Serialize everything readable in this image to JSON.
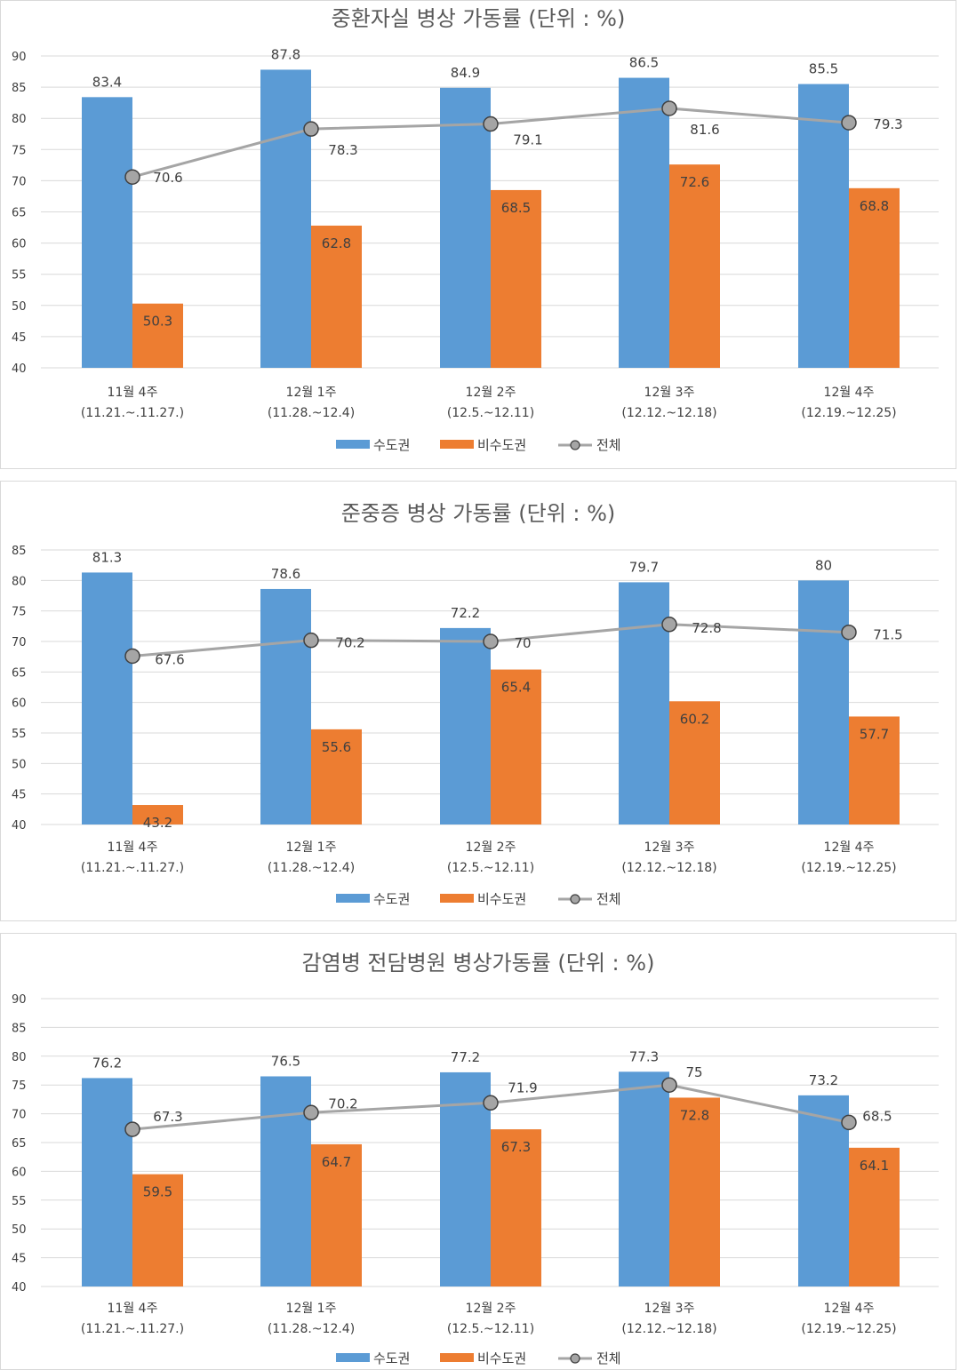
{
  "legend": {
    "series1": "수도권",
    "series2": "비수도권",
    "series3": "전체"
  },
  "colors": {
    "series1": "#5b9bd5",
    "series2": "#ed7d31",
    "series3": "#a5a5a5",
    "grid": "#d9d9d9"
  },
  "chart_data": [
    {
      "type": "bar",
      "title": "중환자실 병상 가동률 (단위 : %)",
      "categories": [
        {
          "line1": "11월 4주",
          "line2": "(11.21.~.11.27.)"
        },
        {
          "line1": "12월 1주",
          "line2": "(11.28.~12.4)"
        },
        {
          "line1": "12월 2주",
          "line2": "(12.5.~12.11)"
        },
        {
          "line1": "12월 3주",
          "line2": "(12.12.~12.18)"
        },
        {
          "line1": "12월 4주",
          "line2": "(12.19.~12.25)"
        }
      ],
      "ylim": [
        40,
        90
      ],
      "yticks": [
        40,
        45,
        50,
        55,
        60,
        65,
        70,
        75,
        80,
        85,
        90
      ],
      "series": [
        {
          "name": "수도권",
          "kind": "bar",
          "values": [
            83.4,
            87.8,
            84.9,
            86.5,
            85.5
          ]
        },
        {
          "name": "비수도권",
          "kind": "bar",
          "values": [
            50.3,
            62.8,
            68.5,
            72.6,
            68.8
          ]
        },
        {
          "name": "전체",
          "kind": "line",
          "values": [
            70.6,
            78.3,
            79.1,
            81.6,
            79.3
          ]
        }
      ],
      "legend_position": "bottom"
    },
    {
      "type": "bar",
      "title": "준중증 병상 가동률 (단위 : %)",
      "categories": [
        {
          "line1": "11월 4주",
          "line2": "(11.21.~.11.27.)"
        },
        {
          "line1": "12월 1주",
          "line2": "(11.28.~12.4)"
        },
        {
          "line1": "12월 2주",
          "line2": "(12.5.~12.11)"
        },
        {
          "line1": "12월 3주",
          "line2": "(12.12.~12.18)"
        },
        {
          "line1": "12월 4주",
          "line2": "(12.19.~12.25)"
        }
      ],
      "ylim": [
        40,
        85
      ],
      "yticks": [
        40,
        45,
        50,
        55,
        60,
        65,
        70,
        75,
        80,
        85
      ],
      "series": [
        {
          "name": "수도권",
          "kind": "bar",
          "values": [
            81.3,
            78.6,
            72.2,
            79.7,
            80
          ]
        },
        {
          "name": "비수도권",
          "kind": "bar",
          "values": [
            43.2,
            55.6,
            65.4,
            60.2,
            57.7
          ]
        },
        {
          "name": "전체",
          "kind": "line",
          "values": [
            67.6,
            70.2,
            70,
            72.8,
            71.5
          ]
        }
      ],
      "legend_position": "bottom"
    },
    {
      "type": "bar",
      "title": "감염병 전담병원 병상가동률 (단위 : %)",
      "categories": [
        {
          "line1": "11월 4주",
          "line2": "(11.21.~.11.27.)"
        },
        {
          "line1": "12월 1주",
          "line2": "(11.28.~12.4)"
        },
        {
          "line1": "12월 2주",
          "line2": "(12.5.~12.11)"
        },
        {
          "line1": "12월 3주",
          "line2": "(12.12.~12.18)"
        },
        {
          "line1": "12월 4주",
          "line2": "(12.19.~12.25)"
        }
      ],
      "ylim": [
        40,
        90
      ],
      "yticks": [
        40,
        45,
        50,
        55,
        60,
        65,
        70,
        75,
        80,
        85,
        90
      ],
      "series": [
        {
          "name": "수도권",
          "kind": "bar",
          "values": [
            76.2,
            76.5,
            77.2,
            77.3,
            73.2
          ]
        },
        {
          "name": "비수도권",
          "kind": "bar",
          "values": [
            59.5,
            64.7,
            67.3,
            72.8,
            64.1
          ]
        },
        {
          "name": "전체",
          "kind": "line",
          "values": [
            67.3,
            70.2,
            71.9,
            75,
            68.5
          ]
        }
      ],
      "legend_position": "bottom"
    }
  ]
}
